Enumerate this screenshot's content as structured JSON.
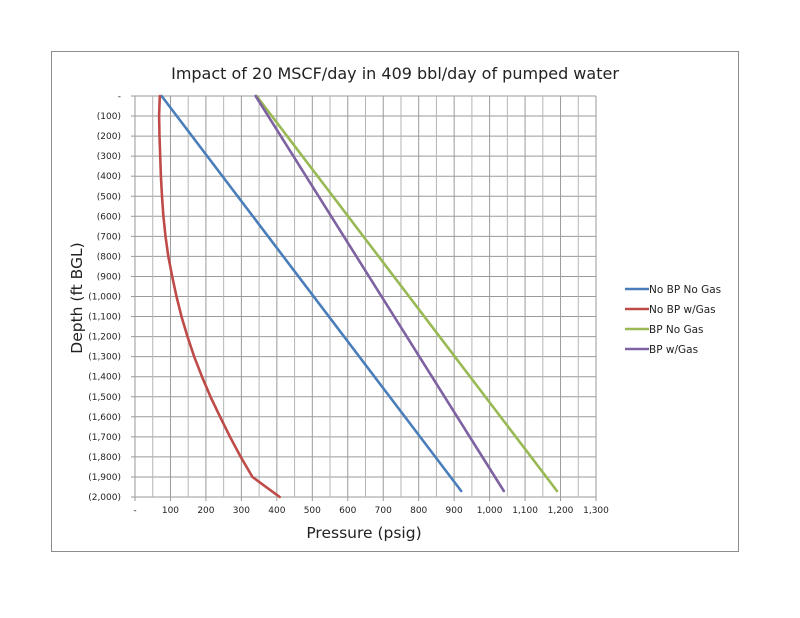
{
  "chart_data": {
    "type": "line",
    "title": "Impact of 20 MSCF/day in 409 bbl/day of pumped water",
    "xlabel": "Pressure (psig)",
    "ylabel": "Depth (ft BGL)",
    "xlim": [
      0,
      1300
    ],
    "ylim": [
      0,
      2000
    ],
    "y_inverted": true,
    "grid": true,
    "legend_position": "right",
    "x_ticks": [
      0,
      100,
      200,
      300,
      400,
      500,
      600,
      700,
      800,
      900,
      1000,
      1100,
      1200,
      1300
    ],
    "x_tick_labels": [
      "-",
      "100",
      "200",
      "300",
      "400",
      "500",
      "600",
      "700",
      "800",
      "900",
      "1,000",
      "1,100",
      "1,200",
      "1,300"
    ],
    "y_ticks": [
      0,
      100,
      200,
      300,
      400,
      500,
      600,
      700,
      800,
      900,
      1000,
      1100,
      1200,
      1300,
      1400,
      1500,
      1600,
      1700,
      1800,
      1900,
      2000
    ],
    "y_tick_labels": [
      "-",
      "(100)",
      "(200)",
      "(300)",
      "(400)",
      "(500)",
      "(600)",
      "(700)",
      "(800)",
      "(900)",
      "(1,000)",
      "(1,100)",
      "(1,200)",
      "(1,300)",
      "(1,400)",
      "(1,500)",
      "(1,600)",
      "(1,700)",
      "(1,800)",
      "(1,900)",
      "(2,000)"
    ],
    "series": [
      {
        "name": "No BP No Gas",
        "color": "#4a7ebb",
        "points": [
          [
            75,
            0
          ],
          [
            920,
            1970
          ]
        ]
      },
      {
        "name": "No BP w/Gas",
        "color": "#be4b48",
        "points": [
          [
            70,
            0
          ],
          [
            68,
            100
          ],
          [
            69,
            200
          ],
          [
            71,
            300
          ],
          [
            73,
            400
          ],
          [
            76,
            500
          ],
          [
            80,
            600
          ],
          [
            86,
            700
          ],
          [
            94,
            800
          ],
          [
            105,
            900
          ],
          [
            117,
            1000
          ],
          [
            131,
            1100
          ],
          [
            148,
            1200
          ],
          [
            167,
            1300
          ],
          [
            189,
            1400
          ],
          [
            213,
            1500
          ],
          [
            240,
            1600
          ],
          [
            268,
            1700
          ],
          [
            298,
            1800
          ],
          [
            331,
            1900
          ],
          [
            408,
            2000
          ]
        ]
      },
      {
        "name": "BP No Gas",
        "color": "#98b954",
        "points": [
          [
            343,
            0
          ],
          [
            1190,
            1970
          ]
        ]
      },
      {
        "name": "BP w/Gas",
        "color": "#7e62a1",
        "points": [
          [
            340,
            0
          ],
          [
            1040,
            1970
          ]
        ]
      }
    ]
  }
}
